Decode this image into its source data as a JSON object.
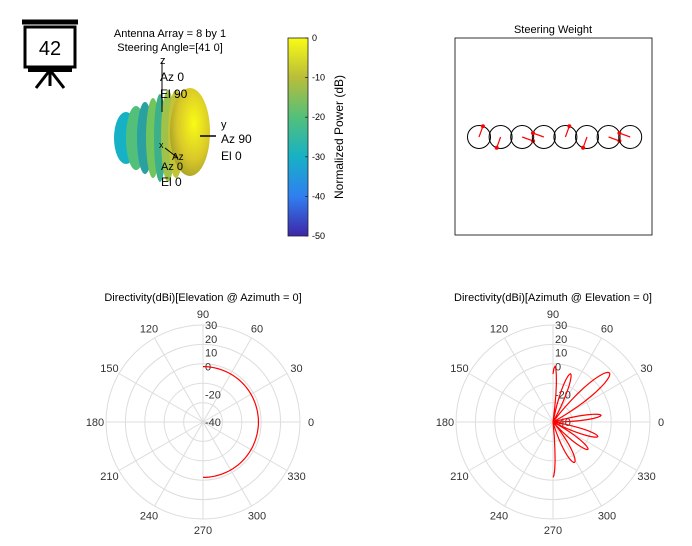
{
  "badge": {
    "number": "42"
  },
  "chart_data": [
    {
      "type": "surface3d",
      "title_lines": [
        "Antenna Array = 8 by 1",
        "Steering Angle=[41 0]"
      ],
      "axis_labels": {
        "z": [
          "z",
          "Az 0",
          "El 90"
        ],
        "y": [
          "y",
          "Az 90",
          "El 0"
        ],
        "x": [
          "x",
          "Az",
          "Az 0",
          "El 0"
        ]
      },
      "colorbar": {
        "label": "Normalized Power (dB)",
        "ticks": [
          "0",
          "-10",
          "-20",
          "-30",
          "-40",
          "-50"
        ],
        "range": [
          -50,
          0
        ],
        "colors": [
          "#3e26a8",
          "#2f7ff1",
          "#17b1c6",
          "#52c07a",
          "#b9bd3a",
          "#f9fb15"
        ]
      }
    },
    {
      "type": "scatter",
      "title": "Steering Weight",
      "circle_count": 8,
      "phase_deg": [
        70,
        250,
        340,
        160,
        70,
        250,
        340,
        160
      ],
      "marker_color": "#ff0000"
    },
    {
      "type": "polar",
      "title": "Directivity(dBi)[Elevation @ Azimuth = 0]",
      "angle_labels": [
        "0",
        "30",
        "60",
        "90",
        "120",
        "150",
        "180",
        "210",
        "240",
        "270",
        "300",
        "330"
      ],
      "radial_labels": [
        "30",
        "20",
        "10",
        "0",
        "-20",
        "-40"
      ],
      "radial_values": [
        30,
        20,
        10,
        0,
        -20,
        -40
      ],
      "r_range": [
        -40,
        30
      ],
      "series": [
        {
          "angle_deg": [
            -90,
            -60,
            -30,
            0,
            30,
            60,
            90
          ],
          "directivity_dbi": [
            0,
            0,
            0,
            0,
            0,
            0,
            0
          ],
          "color": "#ff0000"
        }
      ]
    },
    {
      "type": "polar",
      "title": "Directivity(dBi)[Azimuth @ Elevation = 0]",
      "angle_labels": [
        "0",
        "30",
        "60",
        "90",
        "120",
        "150",
        "180",
        "210",
        "240",
        "270",
        "300",
        "330"
      ],
      "radial_labels": [
        "30",
        "20",
        "10",
        "0",
        "-20",
        "-40"
      ],
      "radial_values": [
        30,
        20,
        10,
        0,
        -20,
        -40
      ],
      "r_range": [
        -40,
        30
      ],
      "series": [
        {
          "lobes": [
            {
              "center_deg": 41,
              "half_width_deg": 12,
              "peak_dbi": 14
            },
            {
              "center_deg": 8,
              "half_width_deg": 8,
              "peak_dbi": -5
            },
            {
              "center_deg": -18,
              "half_width_deg": 9,
              "peak_dbi": -6
            },
            {
              "center_deg": -38,
              "half_width_deg": 10,
              "peak_dbi": -8
            },
            {
              "center_deg": -62,
              "half_width_deg": 12,
              "peak_dbi": -7
            },
            {
              "center_deg": 70,
              "half_width_deg": 9,
              "peak_dbi": -3
            },
            {
              "center_deg": 88,
              "half_width_deg": 6,
              "peak_dbi": 0
            },
            {
              "center_deg": -90,
              "half_width_deg": 6,
              "peak_dbi": 0
            }
          ],
          "floor_dbi": -40,
          "color": "#ff0000"
        }
      ]
    }
  ]
}
